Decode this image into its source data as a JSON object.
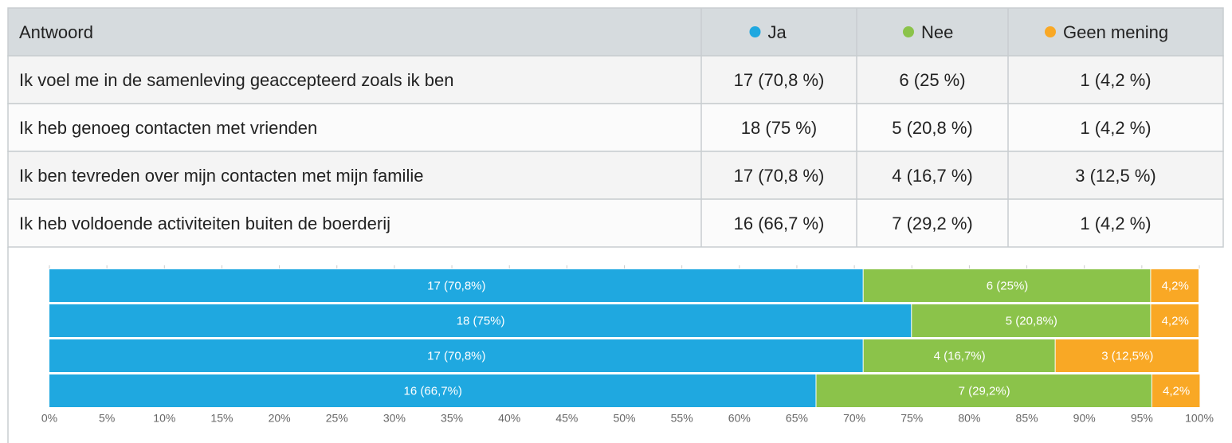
{
  "table": {
    "header": [
      "Antwoord",
      "Ja",
      "Nee",
      "Geen mening"
    ],
    "rows": [
      [
        "Ik voel me in de samenleving geaccepteerd zoals ik ben",
        "17 (70,8 %)",
        "6 (25 %)",
        "1 (4,2 %)"
      ],
      [
        "Ik heb genoeg contacten met vrienden",
        "18 (75 %)",
        "5 (20,8 %)",
        "1 (4,2 %)"
      ],
      [
        "Ik ben tevreden over mijn contacten met mijn familie",
        "17 (70,8 %)",
        "4 (16,7 %)",
        "3 (12,5 %)"
      ],
      [
        "Ik heb voldoende activiteiten buiten de boerderij",
        "16 (66,7 %)",
        "7 (29,2 %)",
        "1 (4,2 %)"
      ]
    ]
  },
  "chart_data": {
    "type": "stacked_barh",
    "categories": [
      null,
      null,
      null,
      null
    ],
    "series": [
      {
        "color": "#1fa8e0",
        "values": [
          70.8,
          75,
          70.8,
          66.7
        ],
        "value_labels": [
          "17 (70,8%)",
          "18 (75%)",
          "17 (70,8%)",
          "16 (66,7%)"
        ]
      },
      {
        "color": "#8bc34a",
        "values": [
          25,
          20.8,
          16.7,
          29.2
        ],
        "value_labels": [
          "6 (25%)",
          "5 (20,8%)",
          "4 (16,7%)",
          "7 (29,2%)"
        ]
      },
      {
        "color": "#f9a825",
        "values": [
          4.2,
          4.2,
          12.5,
          4.2
        ],
        "value_labels": [
          "4,2%",
          "4,2%",
          "3 (12,5%)",
          "4,2%"
        ]
      }
    ],
    "xlim": [
      0,
      100
    ],
    "xticks": [
      {
        "value": 0,
        "label": "0%"
      },
      {
        "value": 5,
        "label": "5%"
      },
      {
        "value": 10,
        "label": "10%"
      },
      {
        "value": 15,
        "label": "15%"
      },
      {
        "value": 20,
        "label": "20%"
      },
      {
        "value": 25,
        "label": "25%"
      },
      {
        "value": 30,
        "label": "30%"
      },
      {
        "value": 35,
        "label": "35%"
      },
      {
        "value": 40,
        "label": "40%"
      },
      {
        "value": 45,
        "label": "45%"
      },
      {
        "value": 50,
        "label": "50%"
      },
      {
        "value": 55,
        "label": "55%"
      },
      {
        "value": 60,
        "label": "60%"
      },
      {
        "value": 65,
        "label": "65%"
      },
      {
        "value": 70,
        "label": "70%"
      },
      {
        "value": 75,
        "label": "75%"
      },
      {
        "value": 80,
        "label": "80%"
      },
      {
        "value": 85,
        "label": "85%"
      },
      {
        "value": 90,
        "label": "90%"
      },
      {
        "value": 95,
        "label": "95%"
      },
      {
        "value": 100,
        "label": "100%"
      }
    ]
  }
}
